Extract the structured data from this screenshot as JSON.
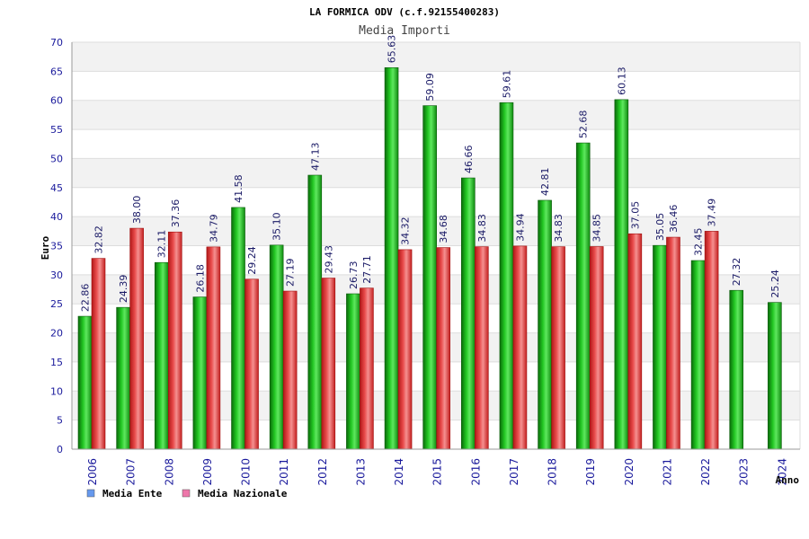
{
  "chart_data": {
    "type": "bar",
    "title": "LA FORMICA ODV (c.f.92155400283)",
    "subtitle": "Media Importi",
    "xlabel": "Anno",
    "ylabel": "Euro",
    "ylim": [
      0,
      70
    ],
    "ytick_step": 5,
    "grid": true,
    "legend_position": "bottom-left",
    "categories": [
      "2006",
      "2007",
      "2008",
      "2009",
      "2010",
      "2011",
      "2012",
      "2013",
      "2014",
      "2015",
      "2016",
      "2017",
      "2018",
      "2019",
      "2020",
      "2021",
      "2022",
      "2023",
      "2024"
    ],
    "series": [
      {
        "name": "Media Ente",
        "color": "#1aa81a",
        "legend_color": "#6699ee",
        "values": [
          22.86,
          24.39,
          32.11,
          26.18,
          41.58,
          35.1,
          47.13,
          26.73,
          65.63,
          59.09,
          46.66,
          59.61,
          42.81,
          52.68,
          60.13,
          35.05,
          32.45,
          27.32,
          25.24
        ],
        "labels": [
          "22.86",
          "24.39",
          "32.11",
          "26.18",
          "41.58",
          "35.10",
          "47.13",
          "26.73",
          "65.63",
          "59.09",
          "46.66",
          "59.61",
          "42.81",
          "52.68",
          "60.13",
          "35.05",
          "32.45",
          "27.32",
          "25.24"
        ]
      },
      {
        "name": "Media Nazionale",
        "color": "#e03a3a",
        "legend_color": "#ee77aa",
        "values": [
          32.82,
          38.0,
          37.36,
          34.79,
          29.24,
          27.19,
          29.43,
          27.71,
          34.32,
          34.68,
          34.83,
          34.94,
          34.83,
          34.85,
          37.05,
          36.46,
          37.49,
          null,
          null
        ],
        "labels": [
          "32.82",
          "38.00",
          "37.36",
          "34.79",
          "29.24",
          "27.19",
          "29.43",
          "27.71",
          "34.32",
          "34.68",
          "34.83",
          "34.94",
          "34.83",
          "34.85",
          "37.05",
          "36.46",
          "37.49",
          null,
          null
        ]
      }
    ]
  }
}
